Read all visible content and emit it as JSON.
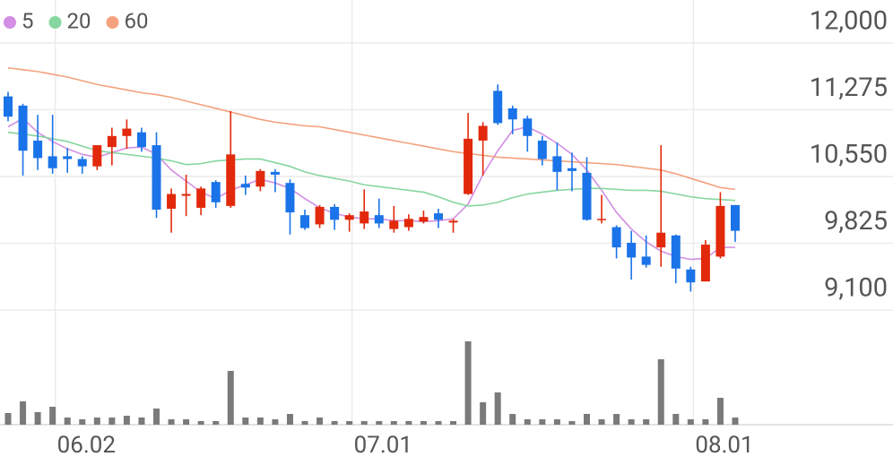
{
  "chart_data": {
    "type": "candlestick",
    "categories": [
      null,
      null,
      null,
      "06.02",
      null,
      null,
      null,
      null,
      null,
      null,
      null,
      null,
      null,
      null,
      null,
      null,
      null,
      null,
      null,
      null,
      null,
      null,
      null,
      "07.01",
      null,
      null,
      null,
      null,
      null,
      null,
      null,
      null,
      null,
      null,
      null,
      null,
      null,
      null,
      null,
      null,
      null,
      null,
      null,
      null,
      null,
      null,
      "08.01",
      null,
      null,
      null
    ],
    "open": [
      11420,
      11320,
      10940,
      10770,
      10770,
      10740,
      10660,
      10870,
      10990,
      11030,
      10890,
      10200,
      10340,
      10210,
      10490,
      10230,
      10470,
      10440,
      10600,
      10480,
      10130,
      10030,
      10220,
      10080,
      10040,
      10130,
      9980,
      10000,
      10060,
      10150,
      10050,
      10360,
      10940,
      11480,
      11290,
      11180,
      10940,
      10770,
      10640,
      10590,
      10080,
      10000,
      9830,
      9680,
      9780,
      9910,
      9540,
      9410,
      9680,
      10240
    ],
    "high": [
      11470,
      11340,
      11220,
      11220,
      10860,
      10770,
      10890,
      11080,
      11170,
      11080,
      11030,
      10420,
      10570,
      10440,
      10510,
      11260,
      10560,
      10630,
      10630,
      10520,
      10190,
      10240,
      10250,
      10150,
      10410,
      10310,
      10230,
      10140,
      10180,
      10200,
      10090,
      11240,
      11140,
      11550,
      11320,
      11210,
      10990,
      10920,
      10810,
      10760,
      10350,
      10020,
      9960,
      9910,
      10890,
      9920,
      9570,
      9860,
      10380,
      10240
    ],
    "low": [
      11150,
      10560,
      10620,
      10580,
      10590,
      10580,
      10620,
      10670,
      10850,
      10820,
      10100,
      9940,
      10120,
      10130,
      10210,
      10210,
      10350,
      10390,
      10380,
      9920,
      9970,
      9990,
      9970,
      9950,
      9980,
      9990,
      9940,
      9960,
      10040,
      9990,
      9940,
      10350,
      10560,
      11110,
      11010,
      10820,
      10670,
      10400,
      10390,
      10070,
      10040,
      9660,
      9430,
      9560,
      9570,
      9390,
      9300,
      9410,
      9660,
      9840
    ],
    "close": [
      11200,
      10830,
      10750,
      10640,
      10740,
      10660,
      10890,
      10990,
      11070,
      10870,
      10190,
      10360,
      10360,
      10420,
      10270,
      10790,
      10430,
      10610,
      10570,
      10160,
      9990,
      10220,
      10080,
      10130,
      10170,
      10040,
      10070,
      10090,
      10110,
      10080,
      10070,
      10960,
      11100,
      11130,
      11170,
      10990,
      10740,
      10600,
      10610,
      10080,
      10090,
      9780,
      9670,
      9590,
      9940,
      9550,
      9400,
      9810,
      10230,
      9960
    ],
    "up_color": "#e2290c",
    "down_color": "#1a73e8",
    "series": [
      {
        "name": "5",
        "color": "#d38fe3",
        "values": [
          11090,
          11180,
          11030,
          10930,
          10850,
          10790,
          10760,
          10810,
          10860,
          10870,
          10790,
          10620,
          10500,
          10380,
          10310,
          10400,
          10460,
          10520,
          10480,
          10420,
          10310,
          10210,
          10150,
          10110,
          10090,
          10090,
          10070,
          10070,
          10060,
          10070,
          10090,
          10250,
          10570,
          10830,
          11050,
          11090,
          11010,
          10910,
          10790,
          10620,
          10400,
          10160,
          9980,
          9840,
          9740,
          9680,
          9650,
          9660,
          9780,
          9780
        ]
      },
      {
        "name": "20",
        "color": "#86d6a0",
        "values": [
          11030,
          11010,
          10990,
          10960,
          10930,
          10880,
          10830,
          10810,
          10790,
          10770,
          10750,
          10720,
          10680,
          10690,
          10720,
          10730,
          10740,
          10740,
          10700,
          10660,
          10600,
          10560,
          10530,
          10500,
          10460,
          10440,
          10420,
          10400,
          10380,
          10330,
          10270,
          10230,
          10240,
          10270,
          10320,
          10360,
          10380,
          10400,
          10410,
          10420,
          10420,
          10410,
          10400,
          10400,
          10390,
          10360,
          10330,
          10310,
          10300,
          10290
        ]
      },
      {
        "name": "60",
        "color": "#f4a27d",
        "values": [
          11730,
          11710,
          11690,
          11660,
          11630,
          11590,
          11550,
          11520,
          11490,
          11460,
          11440,
          11410,
          11370,
          11330,
          11290,
          11250,
          11210,
          11170,
          11140,
          11120,
          11100,
          11090,
          11060,
          11030,
          11000,
          10970,
          10940,
          10910,
          10880,
          10850,
          10820,
          10800,
          10780,
          10760,
          10750,
          10740,
          10730,
          10720,
          10710,
          10700,
          10690,
          10680,
          10660,
          10640,
          10620,
          10580,
          10530,
          10480,
          10430,
          10410
        ]
      }
    ],
    "volume": [
      13,
      26,
      14,
      20,
      8,
      6,
      8,
      8,
      10,
      8,
      18,
      6,
      6,
      4,
      4,
      60,
      8,
      8,
      6,
      12,
      4,
      8,
      4,
      4,
      4,
      4,
      4,
      4,
      4,
      4,
      4,
      93,
      25,
      36,
      12,
      6,
      6,
      6,
      4,
      12,
      6,
      12,
      6,
      6,
      73,
      12,
      6,
      6,
      30,
      8
    ],
    "volume_color": "#7a7a7a",
    "volume_ylim": [
      0,
      100
    ],
    "ylim": [
      9100,
      12000
    ],
    "yticks": [
      {
        "value": 9100,
        "label": "9,100"
      },
      {
        "value": 9825,
        "label": "9,825"
      },
      {
        "value": 10550,
        "label": "10,550"
      },
      {
        "value": 11275,
        "label": "11,275"
      },
      {
        "value": 12000,
        "label": "12,000"
      }
    ],
    "grid": true
  }
}
